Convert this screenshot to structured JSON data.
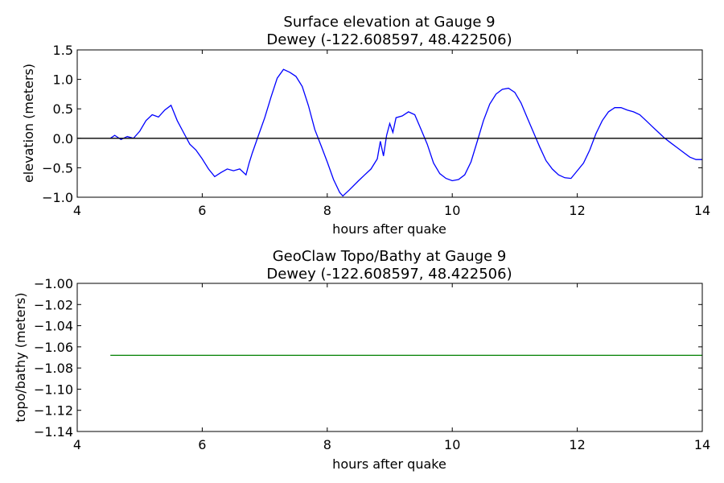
{
  "chart_data": [
    {
      "type": "line",
      "title": "Surface elevation at Gauge 9",
      "subtitle": "Dewey  (-122.608597, 48.422506)",
      "xlabel": "hours after quake",
      "ylabel": "elevation (meters)",
      "xlim": [
        4,
        14
      ],
      "ylim": [
        -1.0,
        1.5
      ],
      "xticks": [
        "4",
        "6",
        "8",
        "10",
        "12",
        "14"
      ],
      "yticks": [
        "1.5",
        "1.0",
        "0.5",
        "0.0",
        "−0.5",
        "−1.0"
      ],
      "grid": false,
      "series": [
        {
          "color": "#0000ff",
          "points": [
            [
              4.53,
              0.0
            ],
            [
              4.6,
              0.05
            ],
            [
              4.7,
              -0.02
            ],
            [
              4.8,
              0.03
            ],
            [
              4.9,
              0.0
            ],
            [
              5.0,
              0.12
            ],
            [
              5.1,
              0.3
            ],
            [
              5.2,
              0.4
            ],
            [
              5.3,
              0.36
            ],
            [
              5.4,
              0.48
            ],
            [
              5.5,
              0.56
            ],
            [
              5.6,
              0.3
            ],
            [
              5.7,
              0.1
            ],
            [
              5.8,
              -0.1
            ],
            [
              5.9,
              -0.2
            ],
            [
              6.0,
              -0.35
            ],
            [
              6.1,
              -0.52
            ],
            [
              6.2,
              -0.65
            ],
            [
              6.3,
              -0.58
            ],
            [
              6.4,
              -0.52
            ],
            [
              6.5,
              -0.55
            ],
            [
              6.6,
              -0.52
            ],
            [
              6.7,
              -0.62
            ],
            [
              6.75,
              -0.42
            ],
            [
              6.8,
              -0.25
            ],
            [
              6.9,
              0.05
            ],
            [
              7.0,
              0.35
            ],
            [
              7.1,
              0.7
            ],
            [
              7.2,
              1.02
            ],
            [
              7.3,
              1.17
            ],
            [
              7.4,
              1.12
            ],
            [
              7.5,
              1.05
            ],
            [
              7.6,
              0.88
            ],
            [
              7.7,
              0.55
            ],
            [
              7.8,
              0.15
            ],
            [
              7.9,
              -0.12
            ],
            [
              8.0,
              -0.4
            ],
            [
              8.1,
              -0.7
            ],
            [
              8.2,
              -0.92
            ],
            [
              8.25,
              -0.98
            ],
            [
              8.35,
              -0.88
            ],
            [
              8.5,
              -0.72
            ],
            [
              8.6,
              -0.62
            ],
            [
              8.7,
              -0.52
            ],
            [
              8.8,
              -0.35
            ],
            [
              8.85,
              -0.05
            ],
            [
              8.9,
              -0.3
            ],
            [
              8.95,
              0.05
            ],
            [
              9.0,
              0.25
            ],
            [
              9.05,
              0.1
            ],
            [
              9.1,
              0.35
            ],
            [
              9.2,
              0.38
            ],
            [
              9.3,
              0.45
            ],
            [
              9.4,
              0.4
            ],
            [
              9.5,
              0.15
            ],
            [
              9.6,
              -0.1
            ],
            [
              9.7,
              -0.42
            ],
            [
              9.8,
              -0.6
            ],
            [
              9.9,
              -0.68
            ],
            [
              10.0,
              -0.72
            ],
            [
              10.1,
              -0.7
            ],
            [
              10.2,
              -0.62
            ],
            [
              10.3,
              -0.4
            ],
            [
              10.4,
              -0.05
            ],
            [
              10.5,
              0.3
            ],
            [
              10.6,
              0.58
            ],
            [
              10.7,
              0.75
            ],
            [
              10.8,
              0.83
            ],
            [
              10.9,
              0.85
            ],
            [
              11.0,
              0.78
            ],
            [
              11.1,
              0.6
            ],
            [
              11.2,
              0.35
            ],
            [
              11.3,
              0.1
            ],
            [
              11.4,
              -0.15
            ],
            [
              11.5,
              -0.38
            ],
            [
              11.6,
              -0.52
            ],
            [
              11.7,
              -0.62
            ],
            [
              11.8,
              -0.67
            ],
            [
              11.9,
              -0.68
            ],
            [
              12.0,
              -0.55
            ],
            [
              12.1,
              -0.42
            ],
            [
              12.2,
              -0.2
            ],
            [
              12.3,
              0.08
            ],
            [
              12.4,
              0.3
            ],
            [
              12.5,
              0.45
            ],
            [
              12.6,
              0.52
            ],
            [
              12.7,
              0.52
            ],
            [
              12.8,
              0.48
            ],
            [
              12.9,
              0.45
            ],
            [
              13.0,
              0.4
            ],
            [
              13.1,
              0.3
            ],
            [
              13.2,
              0.2
            ],
            [
              13.3,
              0.1
            ],
            [
              13.4,
              0.0
            ],
            [
              13.5,
              -0.08
            ],
            [
              13.6,
              -0.16
            ],
            [
              13.7,
              -0.24
            ],
            [
              13.8,
              -0.32
            ],
            [
              13.9,
              -0.36
            ],
            [
              14.0,
              -0.36
            ]
          ]
        },
        {
          "color": "#000000",
          "points": [
            [
              4,
              0.0
            ],
            [
              14,
              0.0
            ]
          ]
        }
      ]
    },
    {
      "type": "line",
      "title": "GeoClaw Topo/Bathy at Gauge 9",
      "subtitle": "Dewey  (-122.608597, 48.422506)",
      "xlabel": "hours after quake",
      "ylabel": "topo/bathy (meters)",
      "xlim": [
        4,
        14
      ],
      "ylim": [
        -1.14,
        -1.0
      ],
      "xticks": [
        "4",
        "6",
        "8",
        "10",
        "12",
        "14"
      ],
      "yticks": [
        "−1.00",
        "−1.02",
        "−1.04",
        "−1.06",
        "−1.08",
        "−1.10",
        "−1.12",
        "−1.14"
      ],
      "grid": false,
      "series": [
        {
          "color": "#008000",
          "points": [
            [
              4.53,
              -1.068
            ],
            [
              14.0,
              -1.068
            ]
          ]
        }
      ]
    }
  ]
}
